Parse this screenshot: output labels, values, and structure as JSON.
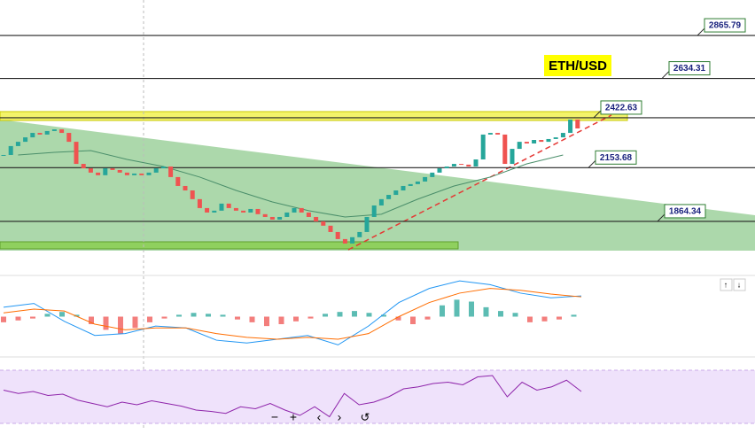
{
  "chart_data": {
    "type": "candlestick",
    "title": "ETH/USD",
    "closes": [
      2222,
      2270,
      2293,
      2317,
      2341,
      2332,
      2351,
      2360,
      2341,
      2293,
      2174,
      2150,
      2127,
      2113,
      2150,
      2141,
      2127,
      2113,
      2122,
      2113,
      2127,
      2150,
      2160,
      2103,
      2055,
      2031,
      1984,
      1936,
      1912,
      1922,
      1960,
      1936,
      1922,
      1912,
      1931,
      1903,
      1888,
      1874,
      1888,
      1912,
      1936,
      1912,
      1888,
      1864,
      1841,
      1807,
      1769,
      1745,
      1779,
      1807,
      1888,
      1950,
      1984,
      2007,
      2031,
      2055,
      2065,
      2079,
      2103,
      2127,
      2150,
      2160,
      2174,
      2170,
      2160,
      2198,
      2332,
      2341,
      2332,
      2174,
      2255,
      2293,
      2284,
      2303,
      2293,
      2308,
      2317,
      2341,
      2413,
      2365
    ],
    "moving_average": [
      2222,
      2236,
      2246,
      2198,
      2160,
      2103,
      2031,
      1969,
      1922,
      1888,
      1903,
      1984,
      2055,
      2103,
      2174,
      2222
    ],
    "levels": [
      2865.79,
      2634.31,
      2422.63,
      2153.68,
      1864.34
    ],
    "ylim": [
      1697,
      3057
    ],
    "macd": {
      "ylim": [
        -40,
        40
      ],
      "histogram": [
        -6,
        -4,
        -2,
        3,
        5,
        2,
        -8,
        -14,
        -18,
        -12,
        -6,
        -2,
        2,
        4,
        3,
        2,
        -3,
        -6,
        -10,
        -8,
        -5,
        -2,
        3,
        5,
        6,
        4,
        2,
        -4,
        -8,
        -3,
        12,
        18,
        16,
        10,
        6,
        4,
        -6,
        -5,
        -3,
        2
      ],
      "line": [
        10,
        14,
        -5,
        -20,
        -18,
        -10,
        -12,
        -25,
        -28,
        -24,
        -20,
        -30,
        -10,
        15,
        30,
        38,
        34,
        25,
        20,
        22
      ],
      "signal": [
        4,
        8,
        6,
        -8,
        -14,
        -12,
        -12,
        -18,
        -22,
        -24,
        -22,
        -24,
        -18,
        0,
        15,
        25,
        30,
        28,
        24,
        21
      ]
    },
    "rsi": {
      "ylim": [
        10,
        90
      ],
      "values": [
        60,
        55,
        58,
        52,
        54,
        45,
        40,
        35,
        42,
        38,
        44,
        40,
        36,
        30,
        28,
        25,
        35,
        32,
        40,
        30,
        22,
        35,
        20,
        55,
        38,
        42,
        50,
        62,
        65,
        70,
        72,
        68,
        80,
        82,
        50,
        72,
        60,
        65,
        75,
        58
      ]
    }
  }
}
